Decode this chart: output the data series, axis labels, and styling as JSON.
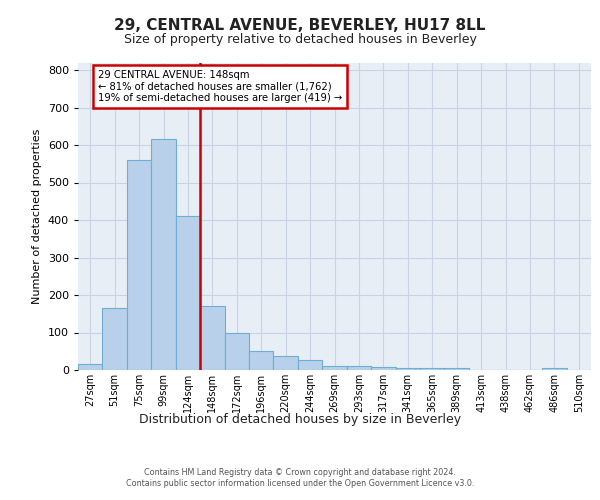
{
  "title1": "29, CENTRAL AVENUE, BEVERLEY, HU17 8LL",
  "title2": "Size of property relative to detached houses in Beverley",
  "xlabel": "Distribution of detached houses by size in Beverley",
  "ylabel": "Number of detached properties",
  "footer1": "Contains HM Land Registry data © Crown copyright and database right 2024.",
  "footer2": "Contains public sector information licensed under the Open Government Licence v3.0.",
  "categories": [
    "27sqm",
    "51sqm",
    "75sqm",
    "99sqm",
    "124sqm",
    "148sqm",
    "172sqm",
    "196sqm",
    "220sqm",
    "244sqm",
    "269sqm",
    "293sqm",
    "317sqm",
    "341sqm",
    "365sqm",
    "389sqm",
    "413sqm",
    "438sqm",
    "462sqm",
    "486sqm",
    "510sqm"
  ],
  "values": [
    15,
    165,
    560,
    615,
    410,
    170,
    100,
    50,
    38,
    28,
    12,
    10,
    7,
    5,
    5,
    5,
    0,
    0,
    0,
    5,
    0
  ],
  "bar_color": "#b8d0ea",
  "bar_edge_color": "#6baed6",
  "vline_idx": 5,
  "vline_color": "#cc0000",
  "annotation_line1": "29 CENTRAL AVENUE: 148sqm",
  "annotation_line2": "← 81% of detached houses are smaller (1,762)",
  "annotation_line3": "19% of semi-detached houses are larger (419) →",
  "annotation_box_edgecolor": "#cc0000",
  "ylim": [
    0,
    820
  ],
  "yticks": [
    0,
    100,
    200,
    300,
    400,
    500,
    600,
    700,
    800
  ],
  "grid_color": "#c8d4e4",
  "bg_color": "#e8eef6"
}
